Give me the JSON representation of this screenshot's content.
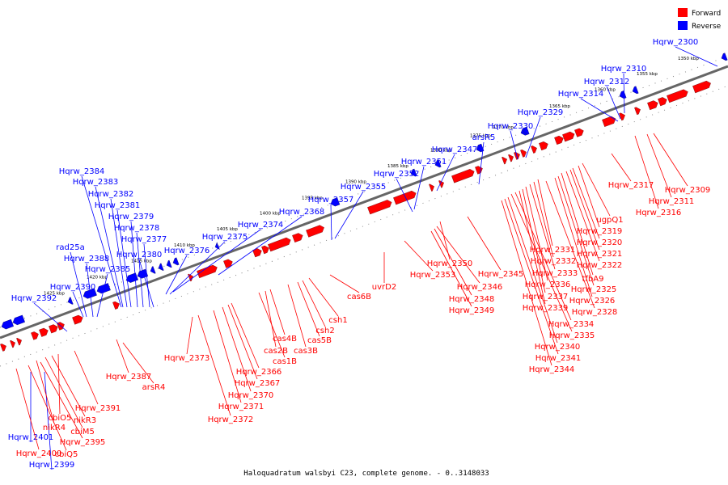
{
  "caption": "Haloquadratum walsbyi C23, complete genome. - 0..3148033",
  "legend": [
    {
      "label": "Forward",
      "color": "#ff0000"
    },
    {
      "label": "Reverse",
      "color": "#0000ff"
    }
  ],
  "colors": {
    "forward": "#ff0000",
    "reverse": "#0000ff",
    "axis": "#666666"
  },
  "ticks": [
    "1350 kbp",
    "1355 kbp",
    "1360 kbp",
    "1365 kbp",
    "1370 kbp",
    "1375 kbp",
    "1380 kbp",
    "1385 kbp",
    "1390 kbp",
    "1395 kbp",
    "1400 kbp",
    "1405 kbp",
    "1410 kbp",
    "1415 kbp",
    "1420 kbp",
    "1425 kbp"
  ],
  "reverse_labels": [
    "Hqrw_2300",
    "Hqrw_2310",
    "Hqrw_2312",
    "Hqrw_2314",
    "Hqrw_2329",
    "Hqrw_2330",
    "arsR5",
    "Hqrw_2347",
    "Hqrw_2351",
    "Hqrw_2352",
    "Hqrw_2355",
    "Hqrw_2357",
    "Hqrw_2368",
    "Hqrw_2374",
    "Hqrw_2375",
    "Hqrw_2376",
    "Hqrw_2384",
    "Hqrw_2383",
    "Hqrw_2382",
    "Hqrw_2381",
    "Hqrw_2379",
    "Hqrw_2378",
    "Hqrw_2377",
    "Hqrw_2380",
    "rad25a",
    "Hqrw_2388",
    "Hqrw_2385",
    "Hqrw_2390",
    "Hqrw_2392",
    "Hqrw_2401",
    "Hqrw_2399"
  ],
  "forward_labels": [
    "Hqrw_2309",
    "Hqrw_2311",
    "Hqrw_2316",
    "Hqrw_2317",
    "ugpQ1",
    "Hqrw_2319",
    "Hqrw_2320",
    "Hqrw_2321",
    "Hqrw_2322",
    "tfbA9",
    "Hqrw_2325",
    "Hqrw_2326",
    "Hqrw_2328",
    "Hqrw_2331",
    "Hqrw_2332",
    "Hqrw_2333",
    "Hqrw_2336",
    "Hqrw_2337",
    "Hqrw_2339",
    "Hqrw_2334",
    "Hqrw_2335",
    "Hqrw_2340",
    "Hqrw_2341",
    "Hqrw_2344",
    "Hqrw_2345",
    "Hqrw_2350",
    "Hqrw_2346",
    "Hqrw_2348",
    "Hqrw_2349",
    "Hqrw_2353",
    "uvrD2",
    "cas6B",
    "csh1",
    "csh2",
    "cas5B",
    "cas3B",
    "cas4B",
    "cas2B",
    "cas1B",
    "Hqrw_2366",
    "Hqrw_2367",
    "Hqrw_2370",
    "Hqrw_2371",
    "Hqrw_2372",
    "Hqrw_2373",
    "Hqrw_2387",
    "arsR4",
    "Hqrw_2391",
    "cbiO5",
    "nikR3",
    "cbiM5",
    "nikR4",
    "Hqrw_2395",
    "cbiQ5",
    "Hqrw_2400"
  ]
}
